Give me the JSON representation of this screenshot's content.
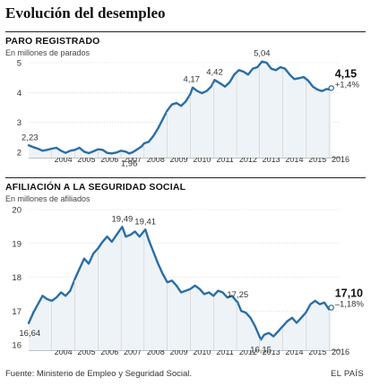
{
  "title": "Evolución del desempleo",
  "source": "Fuente: Ministerio de Empleo y Seguridad Social.",
  "brand": "EL PAÍS",
  "colors": {
    "line": "#2a6ea6",
    "grid": "#999999",
    "accent": "#2a6ea6"
  },
  "chart_data": [
    {
      "type": "line",
      "title": "PARO REGISTRADO",
      "subtitle": "En millones de parados",
      "ylim": [
        2,
        5
      ],
      "yticks": [
        2,
        3,
        4,
        5
      ],
      "xticks": [
        "2004",
        "2005",
        "2006",
        "2007",
        "2008",
        "2009",
        "2010",
        "2011",
        "2012",
        "2013",
        "2014",
        "2015",
        "2016"
      ],
      "annotations": [
        {
          "x": 2003.05,
          "y": 2.23,
          "text": "2,23"
        },
        {
          "x": 2007.35,
          "y": 1.96,
          "text": "1,96"
        },
        {
          "x": 2010.05,
          "y": 4.17,
          "text": "4,17"
        },
        {
          "x": 2011.05,
          "y": 4.42,
          "text": "4,42"
        },
        {
          "x": 2013.1,
          "y": 5.04,
          "text": "5,04"
        }
      ],
      "last_value": "4,15",
      "last_change": "+1,4%",
      "series": [
        {
          "x": [
            2003.0,
            2003.2,
            2003.4,
            2003.6,
            2003.8,
            2004.0,
            2004.2,
            2004.4,
            2004.6,
            2004.8,
            2005.0,
            2005.2,
            2005.4,
            2005.6,
            2005.8,
            2006.0,
            2006.2,
            2006.4,
            2006.6,
            2006.8,
            2007.0,
            2007.2,
            2007.35,
            2007.5,
            2007.7,
            2007.9,
            2008.0,
            2008.2,
            2008.4,
            2008.6,
            2008.8,
            2009.0,
            2009.2,
            2009.4,
            2009.6,
            2009.8,
            2010.0,
            2010.1,
            2010.3,
            2010.5,
            2010.7,
            2010.9,
            2011.05,
            2011.3,
            2011.5,
            2011.7,
            2011.9,
            2012.1,
            2012.3,
            2012.5,
            2012.7,
            2012.9,
            2013.1,
            2013.3,
            2013.5,
            2013.7,
            2013.9,
            2014.1,
            2014.3,
            2014.5,
            2014.7,
            2014.9,
            2015.1,
            2015.3,
            2015.5,
            2015.7,
            2015.9,
            2016.0,
            2016.1
          ],
          "y": [
            2.23,
            2.17,
            2.12,
            2.05,
            2.08,
            2.12,
            2.15,
            2.05,
            1.98,
            2.05,
            2.08,
            2.15,
            2.02,
            1.97,
            2.03,
            2.1,
            2.08,
            1.98,
            1.96,
            1.99,
            2.05,
            2.02,
            1.96,
            2.0,
            2.1,
            2.2,
            2.3,
            2.35,
            2.55,
            2.8,
            3.1,
            3.4,
            3.6,
            3.65,
            3.55,
            3.7,
            3.95,
            4.17,
            4.05,
            3.98,
            4.05,
            4.2,
            4.42,
            4.3,
            4.2,
            4.35,
            4.6,
            4.75,
            4.7,
            4.6,
            4.8,
            4.85,
            5.04,
            5.0,
            4.8,
            4.75,
            4.85,
            4.8,
            4.6,
            4.45,
            4.48,
            4.52,
            4.4,
            4.2,
            4.1,
            4.05,
            4.12,
            4.1,
            4.15
          ]
        }
      ]
    },
    {
      "type": "line",
      "title": "AFILIACIÓN A LA SEGURIDAD SOCIAL",
      "subtitle": "En millones de afiliados",
      "ylim": [
        16,
        20
      ],
      "yticks": [
        16,
        17,
        18,
        19,
        20
      ],
      "xticks": [
        "2004",
        "2005",
        "2006",
        "2007",
        "2008",
        "2009",
        "2010",
        "2011",
        "2012",
        "2013",
        "2014",
        "2015",
        "2016"
      ],
      "annotations": [
        {
          "x": 2003.05,
          "y": 16.64,
          "text": "16,64"
        },
        {
          "x": 2007.05,
          "y": 19.49,
          "text": "19,49"
        },
        {
          "x": 2008.05,
          "y": 19.41,
          "text": "19,41"
        },
        {
          "x": 2012.05,
          "y": 17.25,
          "text": "17,25"
        },
        {
          "x": 2013.05,
          "y": 16.15,
          "text": "16,15"
        }
      ],
      "last_value": "17,10",
      "last_change": "–1,18%",
      "series": [
        {
          "x": [
            2003.0,
            2003.2,
            2003.4,
            2003.6,
            2003.8,
            2004.0,
            2004.2,
            2004.4,
            2004.6,
            2004.8,
            2005.0,
            2005.2,
            2005.4,
            2005.6,
            2005.8,
            2006.0,
            2006.2,
            2006.4,
            2006.6,
            2006.8,
            2007.05,
            2007.2,
            2007.4,
            2007.6,
            2007.8,
            2008.05,
            2008.2,
            2008.4,
            2008.6,
            2008.8,
            2009.0,
            2009.2,
            2009.4,
            2009.6,
            2009.8,
            2010.0,
            2010.2,
            2010.4,
            2010.6,
            2010.8,
            2011.0,
            2011.2,
            2011.4,
            2011.6,
            2011.8,
            2012.05,
            2012.2,
            2012.4,
            2012.6,
            2012.8,
            2013.05,
            2013.2,
            2013.4,
            2013.6,
            2013.8,
            2014.0,
            2014.2,
            2014.4,
            2014.6,
            2014.8,
            2015.0,
            2015.2,
            2015.4,
            2015.6,
            2015.8,
            2016.0,
            2016.1
          ],
          "y": [
            16.64,
            16.95,
            17.2,
            17.45,
            17.35,
            17.3,
            17.4,
            17.55,
            17.45,
            17.6,
            17.95,
            18.25,
            18.55,
            18.4,
            18.7,
            18.85,
            19.05,
            19.2,
            19.05,
            19.25,
            19.49,
            19.2,
            19.25,
            19.35,
            19.2,
            19.41,
            19.1,
            18.75,
            18.4,
            18.1,
            17.85,
            17.9,
            17.75,
            17.55,
            17.6,
            17.65,
            17.75,
            17.65,
            17.5,
            17.55,
            17.45,
            17.6,
            17.55,
            17.4,
            17.45,
            17.25,
            17.0,
            16.95,
            16.8,
            16.55,
            16.15,
            16.3,
            16.35,
            16.25,
            16.4,
            16.55,
            16.7,
            16.8,
            16.65,
            16.8,
            16.95,
            17.2,
            17.3,
            17.2,
            17.25,
            17.05,
            17.1
          ]
        }
      ]
    }
  ]
}
